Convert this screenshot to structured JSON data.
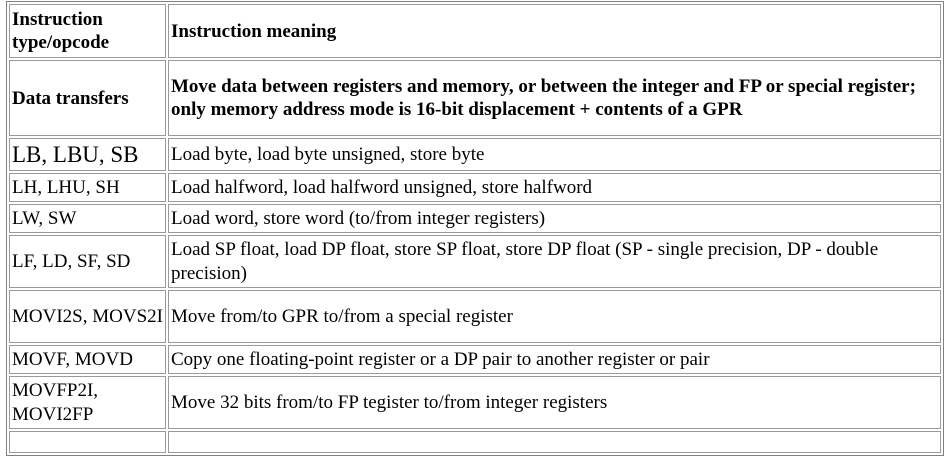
{
  "table": {
    "header": {
      "opcode": "Instruction type/opcode",
      "meaning": "Instruction meaning"
    },
    "rows": [
      {
        "opcode": "Data transfers",
        "meaning": "Move data between registers and memory, or between the integer and FP or special register; only memory address mode is 16-bit displacement + contents of a GPR"
      },
      {
        "opcode": "LB, LBU, SB",
        "meaning": "Load byte, load byte unsigned, store byte"
      },
      {
        "opcode": "LH, LHU, SH",
        "meaning": "Load halfword, load halfword unsigned, store halfword"
      },
      {
        "opcode": "LW, SW",
        "meaning": "Load word, store word (to/from integer registers)"
      },
      {
        "opcode": "LF, LD, SF, SD",
        "meaning": "Load SP float, load DP float, store SP float, store DP float (SP - single precision, DP - double precision)"
      },
      {
        "opcode": "MOVI2S, MOVS2I",
        "meaning": "Move from/to GPR to/from a special register"
      },
      {
        "opcode": "MOVF, MOVD",
        "meaning": "Copy one floating-point register or a DP pair to another register or pair"
      },
      {
        "opcode": "MOVFP2I, MOVI2FP",
        "meaning": "Move 32 bits from/to FP tegister to/from integer registers"
      }
    ]
  }
}
